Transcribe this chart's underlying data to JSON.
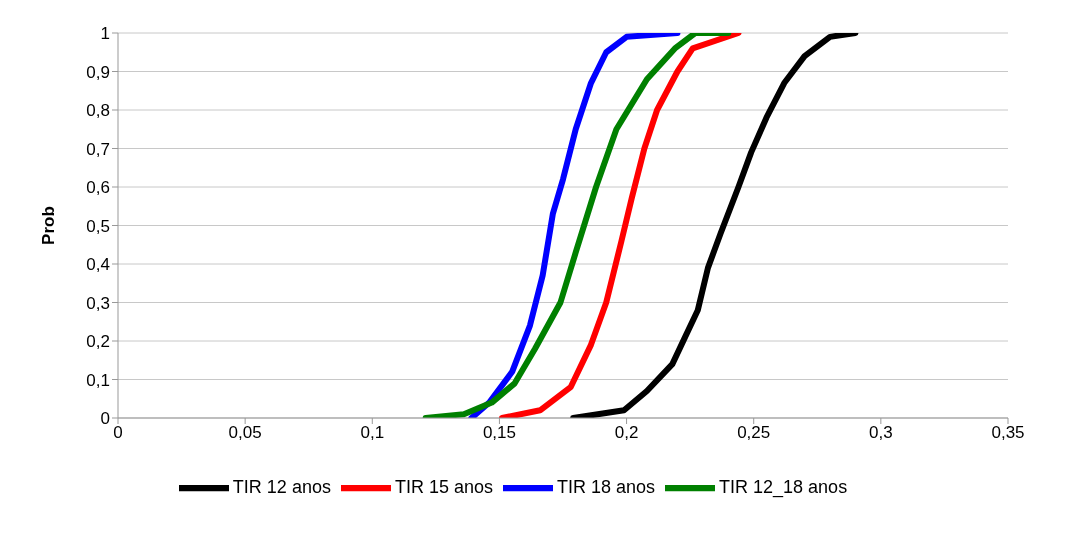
{
  "chart_data": {
    "type": "line",
    "ylabel": "Prob",
    "xlim": [
      0,
      0.35
    ],
    "ylim": [
      0,
      1
    ],
    "xticks": [
      0,
      {
        "value": 0.05,
        "label": "0,05"
      },
      {
        "value": 0.1,
        "label": "0,1"
      },
      {
        "value": 0.15,
        "label": "0,15"
      },
      {
        "value": 0.2,
        "label": "0,2"
      },
      {
        "value": 0.25,
        "label": "0,25"
      },
      {
        "value": 0.3,
        "label": "0,3"
      },
      {
        "value": 0.35,
        "label": "0,35"
      }
    ],
    "yticks": [
      0,
      {
        "value": 0.1,
        "label": "0,1"
      },
      {
        "value": 0.2,
        "label": "0,2"
      },
      {
        "value": 0.3,
        "label": "0,3"
      },
      {
        "value": 0.4,
        "label": "0,4"
      },
      {
        "value": 0.5,
        "label": "0,5"
      },
      {
        "value": 0.6,
        "label": "0,6"
      },
      {
        "value": 0.7,
        "label": "0,7"
      },
      {
        "value": 0.8,
        "label": "0,8"
      },
      {
        "value": 0.9,
        "label": "0,9"
      },
      1
    ],
    "grid": "y",
    "legend": "bottom",
    "marker": "none",
    "line_style": "solid",
    "series": [
      {
        "name": "TIR 12 anos",
        "color": "#000000",
        "x": [
          0.179,
          0.199,
          0.208,
          0.218,
          0.223,
          0.228,
          0.232,
          0.237,
          0.244,
          0.249,
          0.255,
          0.262,
          0.27,
          0.28,
          0.29
        ],
        "values": [
          0,
          0.02,
          0.07,
          0.14,
          0.21,
          0.28,
          0.39,
          0.48,
          0.6,
          0.69,
          0.78,
          0.87,
          0.94,
          0.99,
          1
        ]
      },
      {
        "name": "TIR 15 anos",
        "color": "#ff0000",
        "x": [
          0.151,
          0.166,
          0.178,
          0.186,
          0.192,
          0.198,
          0.202,
          0.207,
          0.212,
          0.22,
          0.226,
          0.244
        ],
        "values": [
          0,
          0.02,
          0.08,
          0.19,
          0.3,
          0.46,
          0.57,
          0.7,
          0.8,
          0.9,
          0.96,
          1
        ]
      },
      {
        "name": "TIR 18 anos",
        "color": "#0000ff",
        "x": [
          0.139,
          0.146,
          0.155,
          0.162,
          0.167,
          0.171,
          0.175,
          0.18,
          0.186,
          0.192,
          0.2,
          0.22
        ],
        "values": [
          0,
          0.04,
          0.12,
          0.24,
          0.37,
          0.53,
          0.62,
          0.75,
          0.87,
          0.95,
          0.99,
          1
        ]
      },
      {
        "name": "TIR 12_18 anos",
        "color": "#008000",
        "x": [
          0.121,
          0.136,
          0.147,
          0.156,
          0.164,
          0.174,
          0.18,
          0.188,
          0.196,
          0.208,
          0.219,
          0.227,
          0.24
        ],
        "values": [
          0,
          0.01,
          0.04,
          0.09,
          0.18,
          0.3,
          0.43,
          0.6,
          0.75,
          0.88,
          0.96,
          1,
          1
        ]
      }
    ]
  }
}
